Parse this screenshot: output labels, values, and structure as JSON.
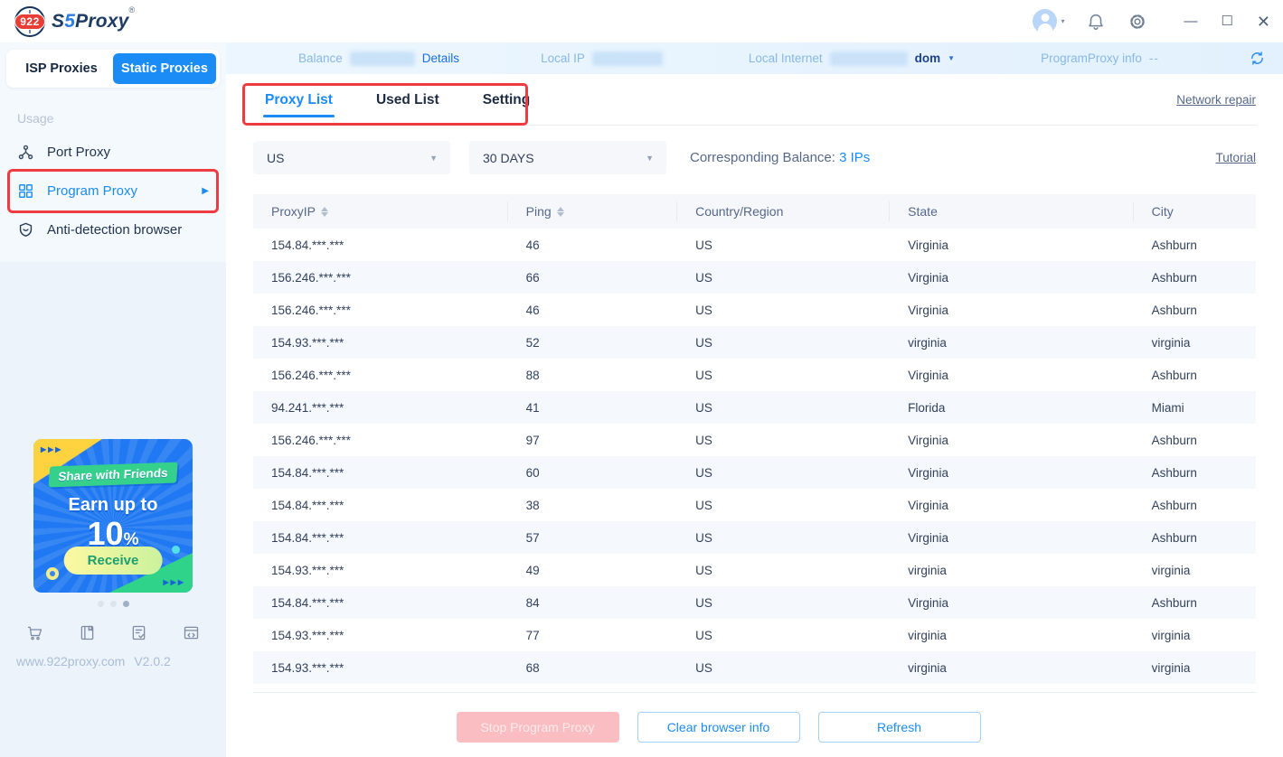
{
  "theme": {
    "accent_blue": "#1b8bf5",
    "annotation_red": "#ee3b41",
    "sidebar_bg": "#eef4fc",
    "infobar_bg": "#e7f3fd",
    "table_header_bg": "#f5f7fa",
    "row_alt_bg": "#f5f9fd",
    "disabled_pink": "#f9bdc2",
    "banner_blue": "#2079f2"
  },
  "titlebar": {
    "logo_badge": "922",
    "brand_s": "S",
    "brand_five": "5",
    "brand_rest": "Proxy",
    "registered_mark": "®",
    "avatar_caret": "▾",
    "minimize": "—",
    "maximize": "☐",
    "close": "✕"
  },
  "icons": {
    "logo-globe-icon": "globe with 922 badge",
    "user-avatar": "person in circle",
    "bell-icon": "notification bell",
    "gear-icon": "settings gear",
    "refresh-icon": "circular arrows",
    "port-proxy-icon": "network hub",
    "program-proxy-icon": "app grid",
    "anti-detection-icon": "shield smile",
    "cart-icon": "shopping cart",
    "book-icon": "manual book",
    "doc-check-icon": "document with check",
    "code-card-icon": "card with </>",
    "sort-icon": "up/down triangles",
    "caret-down": "▼"
  },
  "infobar": {
    "balance_label": "Balance",
    "details_link": "Details",
    "local_ip_label": "Local IP",
    "local_internet_label": "Local Internet",
    "local_internet_suffix": "dom",
    "caret": "▼",
    "programproxy_label": "ProgramProxy info",
    "programproxy_value": "--"
  },
  "sidebar": {
    "toggle": [
      {
        "label": "ISP Proxies",
        "active": false
      },
      {
        "label": "Static Proxies",
        "active": true
      }
    ],
    "section_label": "Usage",
    "menu": [
      {
        "label": "Port Proxy",
        "active": false
      },
      {
        "label": "Program Proxy",
        "active": true,
        "arrow": "▶"
      },
      {
        "label": "Anti-detection browser",
        "active": false
      }
    ],
    "banner": {
      "arrows": "▶▶▶",
      "ribbon": "Share with Friends",
      "line1": "Earn up to",
      "percent": "10",
      "percent_sign": "%",
      "button": "Receive"
    },
    "footer": {
      "site": "www.922proxy.com",
      "version": "V2.0.2"
    }
  },
  "main": {
    "tabs": [
      {
        "label": "Proxy List",
        "active": true
      },
      {
        "label": "Used List",
        "active": false
      },
      {
        "label": "Setting",
        "active": false
      }
    ],
    "network_repair": "Network repair",
    "filters": {
      "country": "US",
      "duration": "30 DAYS",
      "balance_label": "Corresponding Balance:",
      "balance_value": "3 IPs",
      "tutorial": "Tutorial"
    },
    "table": {
      "columns": [
        "ProxyIP",
        "Ping",
        "Country/Region",
        "State",
        "City"
      ],
      "rows": [
        {
          "ip": "154.84.***.***",
          "ping": "46",
          "country": "US",
          "state": "Virginia",
          "city": "Ashburn"
        },
        {
          "ip": "156.246.***.***",
          "ping": "66",
          "country": "US",
          "state": "Virginia",
          "city": "Ashburn"
        },
        {
          "ip": "156.246.***.***",
          "ping": "46",
          "country": "US",
          "state": "Virginia",
          "city": "Ashburn"
        },
        {
          "ip": "154.93.***.***",
          "ping": "52",
          "country": "US",
          "state": "virginia",
          "city": "virginia"
        },
        {
          "ip": "156.246.***.***",
          "ping": "88",
          "country": "US",
          "state": "Virginia",
          "city": "Ashburn"
        },
        {
          "ip": "94.241.***.***",
          "ping": "41",
          "country": "US",
          "state": "Florida",
          "city": "Miami"
        },
        {
          "ip": "156.246.***.***",
          "ping": "97",
          "country": "US",
          "state": "Virginia",
          "city": "Ashburn"
        },
        {
          "ip": "154.84.***.***",
          "ping": "60",
          "country": "US",
          "state": "Virginia",
          "city": "Ashburn"
        },
        {
          "ip": "154.84.***.***",
          "ping": "38",
          "country": "US",
          "state": "Virginia",
          "city": "Ashburn"
        },
        {
          "ip": "154.84.***.***",
          "ping": "57",
          "country": "US",
          "state": "Virginia",
          "city": "Ashburn"
        },
        {
          "ip": "154.93.***.***",
          "ping": "49",
          "country": "US",
          "state": "virginia",
          "city": "virginia"
        },
        {
          "ip": "154.84.***.***",
          "ping": "84",
          "country": "US",
          "state": "Virginia",
          "city": "Ashburn"
        },
        {
          "ip": "154.93.***.***",
          "ping": "77",
          "country": "US",
          "state": "virginia",
          "city": "virginia"
        },
        {
          "ip": "154.93.***.***",
          "ping": "68",
          "country": "US",
          "state": "virginia",
          "city": "virginia"
        }
      ]
    },
    "buttons": {
      "stop": "Stop Program Proxy",
      "clear": "Clear browser info",
      "refresh": "Refresh"
    }
  }
}
